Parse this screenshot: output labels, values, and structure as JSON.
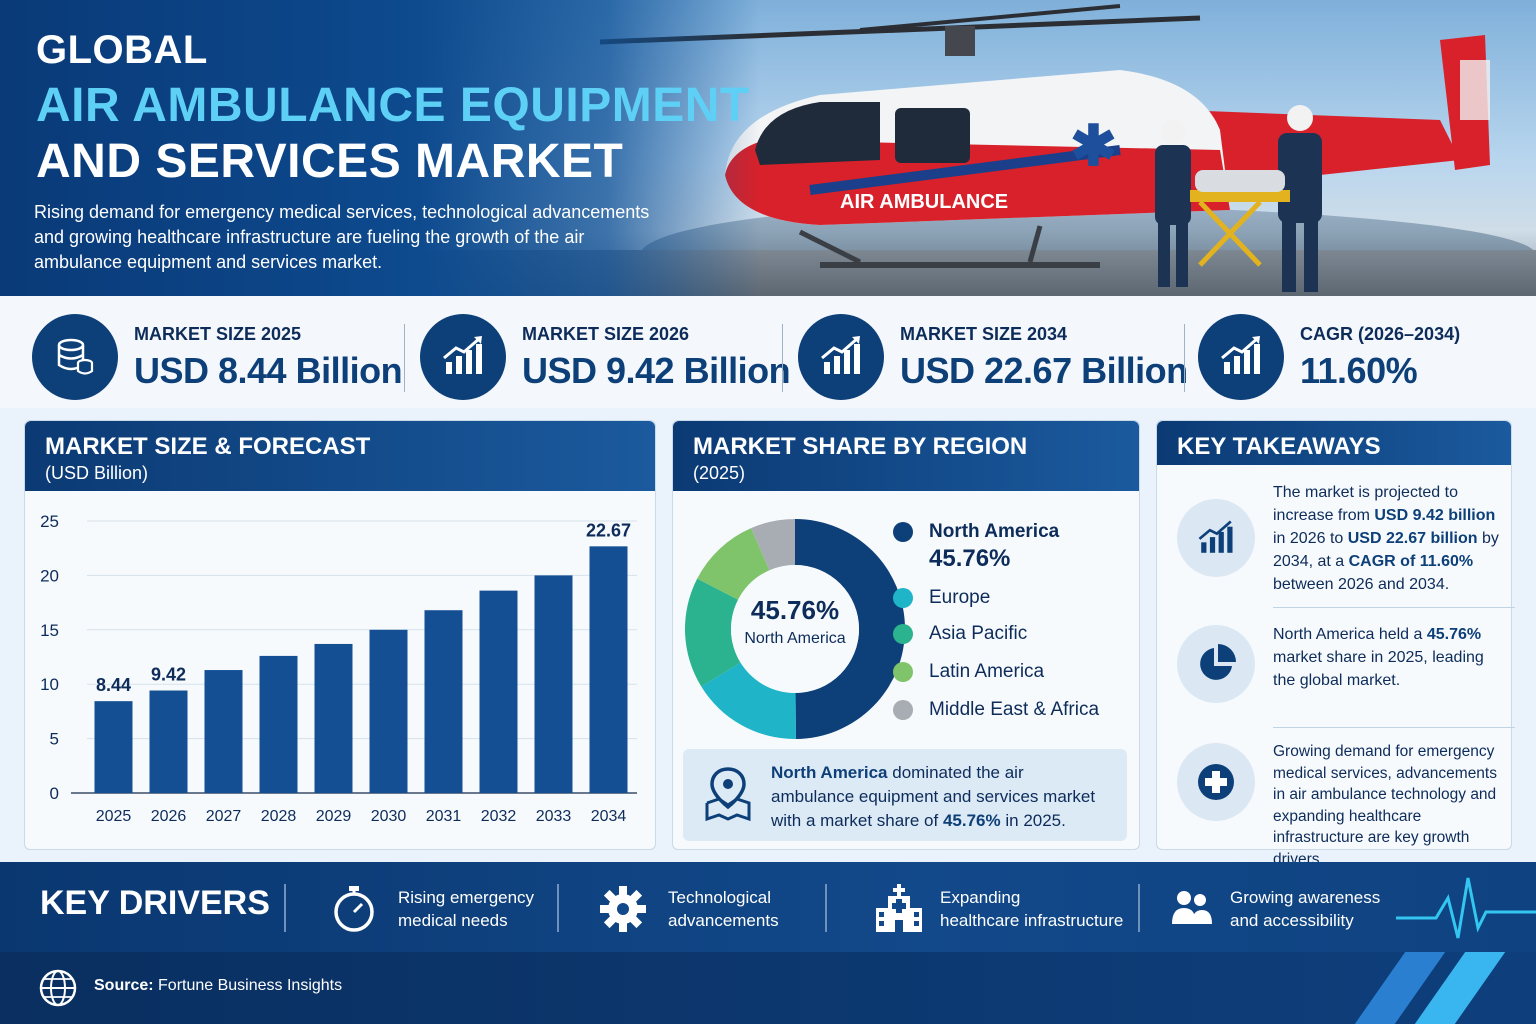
{
  "hero": {
    "title_line1": "GLOBAL",
    "title_line2": "AIR AMBULANCE EQUIPMENT",
    "title_line3": "AND SERVICES MARKET",
    "subtitle": "Rising demand for emergency medical services, technological advancements and growing healthcare infrastructure are fueling the growth of the air ambulance equipment and services market.",
    "helicopter_label": "AIR AMBULANCE"
  },
  "stats": [
    {
      "label": "MARKET SIZE 2025",
      "value": "USD 8.44 Billion",
      "icon": "database-icon"
    },
    {
      "label": "MARKET SIZE 2026",
      "value": "USD 9.42 Billion",
      "icon": "growth-chart-icon"
    },
    {
      "label": "MARKET SIZE 2034",
      "value": "USD 22.67 Billion",
      "icon": "growth-chart-icon"
    },
    {
      "label": "CAGR (2026–2034)",
      "value": "11.60%",
      "icon": "growth-chart-icon"
    }
  ],
  "forecast": {
    "title": "MARKET SIZE & FORECAST",
    "subtitle": "(USD Billion)"
  },
  "region": {
    "title": "MARKET SHARE BY REGION",
    "subtitle": "(2025)",
    "center_pct": "45.76%",
    "center_label": "North America",
    "legend_na_pct": "45.76%",
    "note_bold": "North America",
    "note_text1": " dominated the air ambulance equipment and services market with a market share of ",
    "note_pct": "45.76%",
    "note_text2": " in 2025."
  },
  "takeaways": {
    "title": "KEY TAKEAWAYS",
    "t1_a": "The market is projected to increase from ",
    "t1_b": "USD 9.42 billion",
    "t1_c": " in 2026 to ",
    "t1_d": "USD 22.67 billion",
    "t1_e": " by 2034, at a ",
    "t1_f": "CAGR of 11.60%",
    "t1_g": " between 2026 and 2034.",
    "t2_a": "North America held a ",
    "t2_b": "45.76%",
    "t2_c": " market share in 2025, leading the global market.",
    "t3": "Growing demand for emergency medical services, advancements in air ambulance technology and expanding healthcare infrastructure are key growth drivers."
  },
  "drivers": {
    "title": "KEY DRIVERS",
    "items": [
      {
        "line1": "Rising emergency",
        "line2": "medical needs",
        "icon": "stopwatch-icon"
      },
      {
        "line1": "Technological",
        "line2": "advancements",
        "icon": "gear-icon"
      },
      {
        "line1": "Expanding",
        "line2": "healthcare infrastructure",
        "icon": "hospital-icon"
      },
      {
        "line1": "Growing awareness",
        "line2": "and accessibility",
        "icon": "people-icon"
      }
    ]
  },
  "footer": {
    "source_label": "Source:",
    "source_value": " Fortune Business Insights"
  },
  "colors": {
    "navy": "#0d3f78",
    "cyan_title": "#5fd0f5",
    "bar": "#134f92"
  },
  "chart_data": [
    {
      "type": "bar",
      "categories": [
        "2025",
        "2026",
        "2027",
        "2028",
        "2029",
        "2030",
        "2031",
        "2032",
        "2033",
        "2034"
      ],
      "values": [
        8.44,
        9.42,
        11.3,
        12.6,
        13.7,
        15.0,
        16.8,
        18.6,
        20.0,
        22.67
      ],
      "data_labels": [
        "8.44",
        "9.42",
        "",
        "",
        "",
        "",
        "",
        "",
        "",
        "22.67"
      ],
      "yticks": [
        "0",
        "5",
        "10",
        "15",
        "20",
        "25"
      ],
      "ylim": [
        0,
        25
      ],
      "grid": true
    },
    {
      "type": "pie",
      "labels": [
        "North America",
        "Europe",
        "Asia Pacific",
        "Latin America",
        "Middle East & Africa"
      ],
      "values": [
        45.76,
        15,
        15,
        10,
        6
      ],
      "colors": [
        "#0d3f78",
        "#1fb4c8",
        "#2bb28f",
        "#7fc46a",
        "#a7adb3"
      ],
      "legend": "right"
    }
  ]
}
